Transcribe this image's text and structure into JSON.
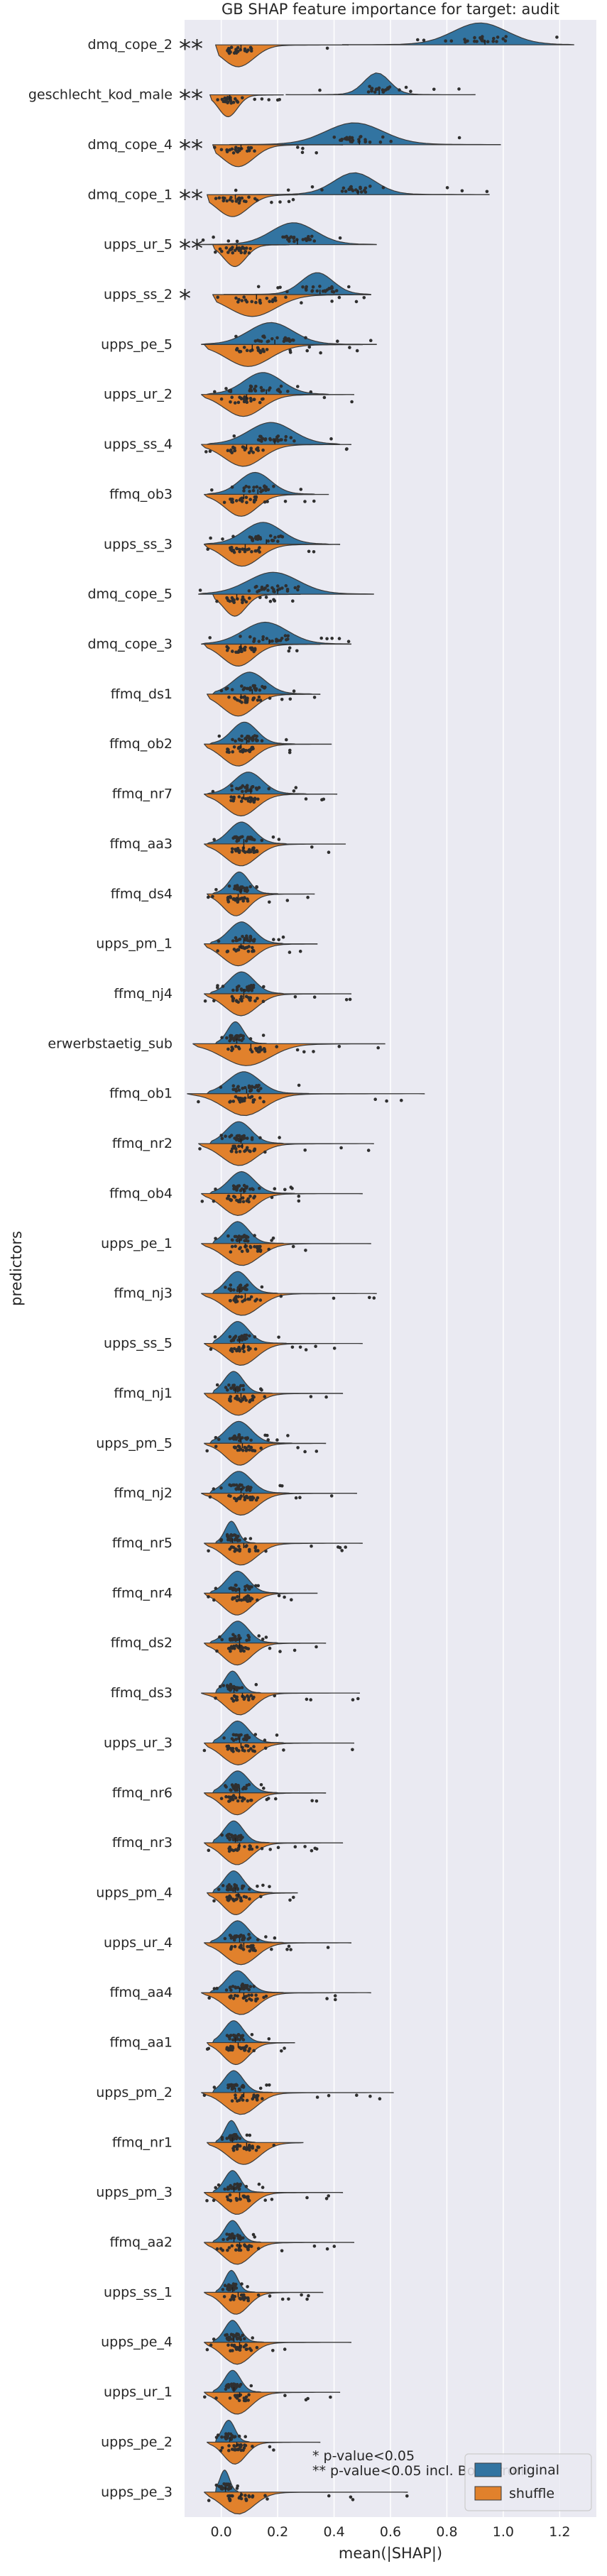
{
  "chart_data": {
    "type": "violin",
    "title": "GB SHAP feature importance for target: audit",
    "xlabel": "mean(|SHAP|)",
    "ylabel": "predictors",
    "xlim": [
      -0.13,
      1.33
    ],
    "xticks": [
      "0.0",
      "0.2",
      "0.4",
      "0.6",
      "0.8",
      "1.0",
      "1.2"
    ],
    "xtick_values": [
      0.0,
      0.2,
      0.4,
      0.6,
      0.8,
      1.0,
      1.2
    ],
    "grid": true,
    "legend_position": "lower-right",
    "series": [
      {
        "name": "original",
        "color": "#3274a1"
      },
      {
        "name": "shuffle",
        "color": "#e1812c"
      }
    ],
    "annotation_lines": [
      "*  p-value<0.05",
      "** p-value<0.05 incl. Bonferroni"
    ],
    "predictors": [
      {
        "name": "dmq_cope_2",
        "sig": "**",
        "original": [
          0.43,
          0.85,
          1.02,
          1.25
        ],
        "shuffle": [
          -0.02,
          0.02,
          0.12,
          0.45
        ]
      },
      {
        "name": "geschlecht_kod_male",
        "sig": "**",
        "original": [
          0.23,
          0.52,
          0.6,
          0.9
        ],
        "shuffle": [
          -0.04,
          0.0,
          0.06,
          0.22
        ]
      },
      {
        "name": "dmq_cope_4",
        "sig": "**",
        "original": [
          0.03,
          0.4,
          0.58,
          0.99
        ],
        "shuffle": [
          -0.03,
          0.02,
          0.12,
          0.43
        ]
      },
      {
        "name": "dmq_cope_1",
        "sig": "**",
        "original": [
          0.05,
          0.42,
          0.55,
          0.95
        ],
        "shuffle": [
          -0.05,
          0.0,
          0.1,
          0.27
        ]
      },
      {
        "name": "upps_ur_5",
        "sig": "**",
        "original": [
          -0.08,
          0.2,
          0.34,
          0.55
        ],
        "shuffle": [
          -0.03,
          0.02,
          0.09,
          0.24
        ]
      },
      {
        "name": "upps_ss_2",
        "sig": "*",
        "original": [
          0.01,
          0.3,
          0.4,
          0.53
        ],
        "shuffle": [
          -0.03,
          0.05,
          0.2,
          0.53
        ]
      },
      {
        "name": "upps_pe_5",
        "sig": "",
        "original": [
          -0.07,
          0.12,
          0.26,
          0.55
        ],
        "shuffle": [
          -0.06,
          0.04,
          0.18,
          0.5
        ]
      },
      {
        "name": "upps_ur_2",
        "sig": "",
        "original": [
          -0.05,
          0.1,
          0.22,
          0.38
        ],
        "shuffle": [
          -0.07,
          0.03,
          0.15,
          0.47
        ]
      },
      {
        "name": "upps_ss_4",
        "sig": "",
        "original": [
          -0.05,
          0.12,
          0.26,
          0.42
        ],
        "shuffle": [
          -0.07,
          0.03,
          0.15,
          0.46
        ]
      },
      {
        "name": "ffmq_ob3",
        "sig": "",
        "original": [
          -0.05,
          0.08,
          0.18,
          0.33
        ],
        "shuffle": [
          -0.06,
          0.03,
          0.13,
          0.38
        ]
      },
      {
        "name": "upps_ss_3",
        "sig": "",
        "original": [
          -0.06,
          0.1,
          0.22,
          0.38
        ],
        "shuffle": [
          -0.06,
          0.03,
          0.14,
          0.42
        ]
      },
      {
        "name": "dmq_cope_5",
        "sig": "",
        "original": [
          -0.08,
          0.12,
          0.28,
          0.54
        ],
        "shuffle": [
          -0.03,
          0.02,
          0.09,
          0.28
        ]
      },
      {
        "name": "dmq_cope_3",
        "sig": "",
        "original": [
          -0.07,
          0.1,
          0.24,
          0.46
        ],
        "shuffle": [
          -0.06,
          0.02,
          0.12,
          0.35
        ]
      },
      {
        "name": "ffmq_ds1",
        "sig": "",
        "original": [
          -0.03,
          0.06,
          0.16,
          0.32
        ],
        "shuffle": [
          -0.05,
          0.02,
          0.12,
          0.35
        ]
      },
      {
        "name": "ffmq_ob2",
        "sig": "",
        "original": [
          -0.04,
          0.05,
          0.13,
          0.26
        ],
        "shuffle": [
          -0.06,
          0.02,
          0.12,
          0.39
        ]
      },
      {
        "name": "ffmq_nr7",
        "sig": "",
        "original": [
          -0.05,
          0.06,
          0.15,
          0.3
        ],
        "shuffle": [
          -0.06,
          0.03,
          0.13,
          0.41
        ]
      },
      {
        "name": "ffmq_aa3",
        "sig": "",
        "original": [
          -0.05,
          0.04,
          0.12,
          0.23
        ],
        "shuffle": [
          -0.06,
          0.03,
          0.13,
          0.44
        ]
      },
      {
        "name": "ffmq_ds4",
        "sig": "",
        "original": [
          -0.03,
          0.04,
          0.1,
          0.2
        ],
        "shuffle": [
          -0.05,
          0.02,
          0.1,
          0.33
        ]
      },
      {
        "name": "upps_pm_1",
        "sig": "",
        "original": [
          -0.04,
          0.04,
          0.12,
          0.22
        ],
        "shuffle": [
          -0.06,
          0.02,
          0.12,
          0.34
        ]
      },
      {
        "name": "ffmq_nj4",
        "sig": "",
        "original": [
          -0.04,
          0.04,
          0.12,
          0.22
        ],
        "shuffle": [
          -0.06,
          0.03,
          0.13,
          0.46
        ]
      },
      {
        "name": "erwerbstaetig_sub",
        "sig": "",
        "original": [
          -0.02,
          0.03,
          0.08,
          0.16
        ],
        "shuffle": [
          -0.1,
          0.03,
          0.18,
          0.58
        ]
      },
      {
        "name": "ffmq_ob1",
        "sig": "",
        "original": [
          -0.05,
          0.04,
          0.14,
          0.31
        ],
        "shuffle": [
          -0.12,
          0.03,
          0.16,
          0.72
        ]
      },
      {
        "name": "ffmq_nr2",
        "sig": "",
        "original": [
          -0.04,
          0.03,
          0.11,
          0.22
        ],
        "shuffle": [
          -0.08,
          0.02,
          0.13,
          0.54
        ]
      },
      {
        "name": "ffmq_ob4",
        "sig": "",
        "original": [
          -0.04,
          0.04,
          0.12,
          0.26
        ],
        "shuffle": [
          -0.07,
          0.02,
          0.12,
          0.5
        ]
      },
      {
        "name": "upps_pe_1",
        "sig": "",
        "original": [
          -0.03,
          0.03,
          0.1,
          0.22
        ],
        "shuffle": [
          -0.07,
          0.03,
          0.14,
          0.53
        ]
      },
      {
        "name": "ffmq_nj3",
        "sig": "",
        "original": [
          -0.03,
          0.03,
          0.1,
          0.2
        ],
        "shuffle": [
          -0.07,
          0.03,
          0.14,
          0.55
        ]
      },
      {
        "name": "upps_ss_5",
        "sig": "",
        "original": [
          -0.03,
          0.03,
          0.1,
          0.23
        ],
        "shuffle": [
          -0.06,
          0.03,
          0.13,
          0.5
        ]
      },
      {
        "name": "ffmq_nj1",
        "sig": "",
        "original": [
          -0.03,
          0.02,
          0.08,
          0.18
        ],
        "shuffle": [
          -0.06,
          0.02,
          0.12,
          0.43
        ]
      },
      {
        "name": "upps_pm_5",
        "sig": "",
        "original": [
          -0.04,
          0.03,
          0.11,
          0.25
        ],
        "shuffle": [
          -0.06,
          0.03,
          0.12,
          0.37
        ]
      },
      {
        "name": "ffmq_nj2",
        "sig": "",
        "original": [
          -0.04,
          0.03,
          0.11,
          0.24
        ],
        "shuffle": [
          -0.07,
          0.03,
          0.13,
          0.48
        ]
      },
      {
        "name": "ffmq_nr5",
        "sig": "",
        "original": [
          -0.02,
          0.02,
          0.06,
          0.12
        ],
        "shuffle": [
          -0.06,
          0.03,
          0.13,
          0.5
        ]
      },
      {
        "name": "ffmq_nr4",
        "sig": "",
        "original": [
          -0.04,
          0.03,
          0.1,
          0.2
        ],
        "shuffle": [
          -0.06,
          0.02,
          0.11,
          0.34
        ]
      },
      {
        "name": "ffmq_ds2",
        "sig": "",
        "original": [
          -0.04,
          0.03,
          0.1,
          0.2
        ],
        "shuffle": [
          -0.06,
          0.02,
          0.11,
          0.37
        ]
      },
      {
        "name": "ffmq_ds3",
        "sig": "",
        "original": [
          -0.02,
          0.02,
          0.07,
          0.14
        ],
        "shuffle": [
          -0.07,
          0.03,
          0.12,
          0.49
        ]
      },
      {
        "name": "upps_ur_3",
        "sig": "",
        "original": [
          -0.03,
          0.03,
          0.1,
          0.22
        ],
        "shuffle": [
          -0.06,
          0.02,
          0.12,
          0.47
        ]
      },
      {
        "name": "ffmq_nr6",
        "sig": "",
        "original": [
          -0.03,
          0.03,
          0.1,
          0.2
        ],
        "shuffle": [
          -0.06,
          0.02,
          0.11,
          0.37
        ]
      },
      {
        "name": "ffmq_nr3",
        "sig": "",
        "original": [
          -0.03,
          0.02,
          0.08,
          0.17
        ],
        "shuffle": [
          -0.06,
          0.02,
          0.11,
          0.43
        ]
      },
      {
        "name": "upps_pm_4",
        "sig": "",
        "original": [
          -0.03,
          0.02,
          0.08,
          0.18
        ],
        "shuffle": [
          -0.05,
          0.02,
          0.1,
          0.27
        ]
      },
      {
        "name": "upps_ur_4",
        "sig": "",
        "original": [
          -0.04,
          0.03,
          0.1,
          0.22
        ],
        "shuffle": [
          -0.06,
          0.03,
          0.13,
          0.46
        ]
      },
      {
        "name": "ffmq_aa4",
        "sig": "",
        "original": [
          -0.04,
          0.03,
          0.1,
          0.22
        ],
        "shuffle": [
          -0.07,
          0.03,
          0.13,
          0.53
        ]
      },
      {
        "name": "ffmq_aa1",
        "sig": "",
        "original": [
          -0.03,
          0.02,
          0.08,
          0.17
        ],
        "shuffle": [
          -0.05,
          0.02,
          0.1,
          0.26
        ]
      },
      {
        "name": "upps_pm_2",
        "sig": "",
        "original": [
          -0.03,
          0.02,
          0.08,
          0.18
        ],
        "shuffle": [
          -0.07,
          0.03,
          0.13,
          0.61
        ]
      },
      {
        "name": "ffmq_nr1",
        "sig": "",
        "original": [
          -0.02,
          0.02,
          0.06,
          0.12
        ],
        "shuffle": [
          -0.05,
          0.04,
          0.14,
          0.29
        ]
      },
      {
        "name": "upps_pm_3",
        "sig": "",
        "original": [
          -0.03,
          0.02,
          0.07,
          0.15
        ],
        "shuffle": [
          -0.06,
          0.02,
          0.11,
          0.43
        ]
      },
      {
        "name": "ffmq_aa2",
        "sig": "",
        "original": [
          -0.03,
          0.02,
          0.07,
          0.14
        ],
        "shuffle": [
          -0.06,
          0.02,
          0.11,
          0.47
        ]
      },
      {
        "name": "upps_ss_1",
        "sig": "",
        "original": [
          -0.02,
          0.02,
          0.06,
          0.12
        ],
        "shuffle": [
          -0.06,
          0.02,
          0.1,
          0.36
        ]
      },
      {
        "name": "upps_pe_4",
        "sig": "",
        "original": [
          -0.03,
          0.02,
          0.07,
          0.15
        ],
        "shuffle": [
          -0.06,
          0.02,
          0.11,
          0.46
        ]
      },
      {
        "name": "upps_ur_1",
        "sig": "",
        "original": [
          -0.03,
          0.02,
          0.07,
          0.14
        ],
        "shuffle": [
          -0.06,
          0.02,
          0.11,
          0.42
        ]
      },
      {
        "name": "upps_pe_2",
        "sig": "",
        "original": [
          -0.02,
          0.01,
          0.05,
          0.1
        ],
        "shuffle": [
          -0.05,
          0.02,
          0.09,
          0.35
        ]
      },
      {
        "name": "upps_pe_3",
        "sig": "",
        "original": [
          -0.02,
          0.0,
          0.03,
          0.06
        ],
        "shuffle": [
          -0.06,
          0.02,
          0.12,
          0.66
        ]
      }
    ]
  }
}
